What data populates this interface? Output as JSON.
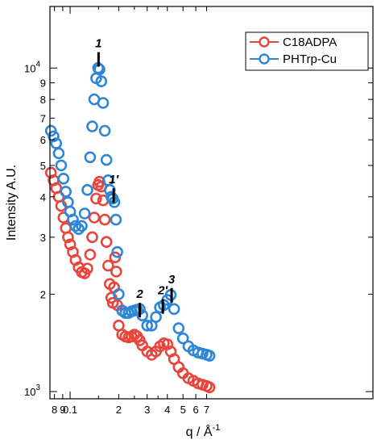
{
  "chart_data": {
    "type": "scatter",
    "xlabel": "q / Å",
    "xlabel_sup": "-1",
    "ylabel": "Intensity A.U.",
    "x_scale": "log",
    "y_scale": "log",
    "xlim": [
      0.075,
      7.5
    ],
    "ylim": [
      950,
      15500
    ],
    "x_ticks": [
      {
        "v": 0.08,
        "label": "8"
      },
      {
        "v": 0.09,
        "label": "9"
      },
      {
        "v": 0.1,
        "label": "0.1"
      },
      {
        "v": 0.2,
        "label": "2"
      },
      {
        "v": 0.3,
        "label": "3"
      },
      {
        "v": 0.4,
        "label": "4"
      },
      {
        "v": 0.5,
        "label": "5"
      },
      {
        "v": 0.6,
        "label": "6"
      },
      {
        "v": 0.7,
        "label": "7"
      }
    ],
    "x_minor_ticks": [
      0.15,
      0.25,
      0.35
    ],
    "y_ticks": [
      {
        "v": 1000,
        "label": "10",
        "sup": "3"
      },
      {
        "v": 2000,
        "label": "2"
      },
      {
        "v": 3000,
        "label": "3"
      },
      {
        "v": 4000,
        "label": "4"
      },
      {
        "v": 5000,
        "label": "5"
      },
      {
        "v": 6000,
        "label": "6"
      },
      {
        "v": 7000,
        "label": "7"
      },
      {
        "v": 8000,
        "label": "8"
      },
      {
        "v": 9000,
        "label": "9"
      },
      {
        "v": 10000,
        "label": "10",
        "sup": "4"
      }
    ],
    "legend_position": "top-right",
    "series": [
      {
        "name": "C18ADPA",
        "color": "#e8453c",
        "points": [
          [
            0.076,
            4750
          ],
          [
            0.079,
            4500
          ],
          [
            0.082,
            4250
          ],
          [
            0.085,
            4000
          ],
          [
            0.088,
            3750
          ],
          [
            0.091,
            3450
          ],
          [
            0.094,
            3200
          ],
          [
            0.097,
            3000
          ],
          [
            0.1,
            2850
          ],
          [
            0.104,
            2700
          ],
          [
            0.108,
            2550
          ],
          [
            0.113,
            2420
          ],
          [
            0.118,
            2340
          ],
          [
            0.123,
            2320
          ],
          [
            0.128,
            2400
          ],
          [
            0.133,
            2650
          ],
          [
            0.137,
            3000
          ],
          [
            0.141,
            3450
          ],
          [
            0.145,
            3950
          ],
          [
            0.149,
            4350
          ],
          [
            0.152,
            4450
          ],
          [
            0.156,
            4300
          ],
          [
            0.16,
            3900
          ],
          [
            0.164,
            3400
          ],
          [
            0.168,
            2900
          ],
          [
            0.172,
            2450
          ],
          [
            0.176,
            2150
          ],
          [
            0.18,
            1950
          ],
          [
            0.184,
            1880
          ],
          [
            0.187,
            2100
          ],
          [
            0.19,
            2600
          ],
          [
            0.193,
            2350
          ],
          [
            0.196,
            1850
          ],
          [
            0.2,
            1600
          ],
          [
            0.21,
            1500
          ],
          [
            0.22,
            1480
          ],
          [
            0.23,
            1470
          ],
          [
            0.24,
            1480
          ],
          [
            0.25,
            1500
          ],
          [
            0.26,
            1480
          ],
          [
            0.27,
            1440
          ],
          [
            0.28,
            1390
          ],
          [
            0.3,
            1330
          ],
          [
            0.32,
            1300
          ],
          [
            0.34,
            1330
          ],
          [
            0.36,
            1380
          ],
          [
            0.38,
            1410
          ],
          [
            0.4,
            1400
          ],
          [
            0.42,
            1330
          ],
          [
            0.44,
            1260
          ],
          [
            0.47,
            1190
          ],
          [
            0.5,
            1140
          ],
          [
            0.54,
            1100
          ],
          [
            0.58,
            1080
          ],
          [
            0.62,
            1060
          ],
          [
            0.66,
            1050
          ],
          [
            0.7,
            1040
          ],
          [
            0.73,
            1030
          ]
        ]
      },
      {
        "name": "PHTrp-Cu",
        "color": "#2f86d6",
        "points": [
          [
            0.076,
            6400
          ],
          [
            0.079,
            6150
          ],
          [
            0.082,
            5850
          ],
          [
            0.085,
            5450
          ],
          [
            0.088,
            5000
          ],
          [
            0.091,
            4550
          ],
          [
            0.094,
            4150
          ],
          [
            0.097,
            3850
          ],
          [
            0.1,
            3600
          ],
          [
            0.104,
            3400
          ],
          [
            0.108,
            3250
          ],
          [
            0.113,
            3180
          ],
          [
            0.118,
            3250
          ],
          [
            0.123,
            3550
          ],
          [
            0.128,
            4200
          ],
          [
            0.133,
            5300
          ],
          [
            0.137,
            6600
          ],
          [
            0.141,
            8000
          ],
          [
            0.145,
            9300
          ],
          [
            0.149,
            10000
          ],
          [
            0.152,
            9900
          ],
          [
            0.156,
            9100
          ],
          [
            0.16,
            7800
          ],
          [
            0.164,
            6400
          ],
          [
            0.168,
            5200
          ],
          [
            0.172,
            4500
          ],
          [
            0.176,
            4200
          ],
          [
            0.18,
            4000
          ],
          [
            0.184,
            3950
          ],
          [
            0.188,
            3850
          ],
          [
            0.192,
            3400
          ],
          [
            0.196,
            2700
          ],
          [
            0.2,
            2000
          ],
          [
            0.21,
            1780
          ],
          [
            0.22,
            1750
          ],
          [
            0.23,
            1750
          ],
          [
            0.24,
            1770
          ],
          [
            0.25,
            1780
          ],
          [
            0.26,
            1790
          ],
          [
            0.27,
            1800
          ],
          [
            0.28,
            1720
          ],
          [
            0.3,
            1600
          ],
          [
            0.32,
            1600
          ],
          [
            0.34,
            1700
          ],
          [
            0.36,
            1820
          ],
          [
            0.38,
            1850
          ],
          [
            0.4,
            1920
          ],
          [
            0.42,
            1990
          ],
          [
            0.44,
            1800
          ],
          [
            0.47,
            1570
          ],
          [
            0.5,
            1460
          ],
          [
            0.54,
            1380
          ],
          [
            0.58,
            1340
          ],
          [
            0.62,
            1320
          ],
          [
            0.66,
            1310
          ],
          [
            0.7,
            1300
          ],
          [
            0.73,
            1290
          ]
        ]
      }
    ],
    "annotations": [
      {
        "label": "1",
        "x": 0.15,
        "y": 11200
      },
      {
        "label": "1′",
        "x": 0.186,
        "y": 4250
      },
      {
        "label": "2",
        "x": 0.27,
        "y": 1880
      },
      {
        "label": "2′",
        "x": 0.375,
        "y": 1930
      },
      {
        "label": "3",
        "x": 0.425,
        "y": 2090
      }
    ]
  }
}
